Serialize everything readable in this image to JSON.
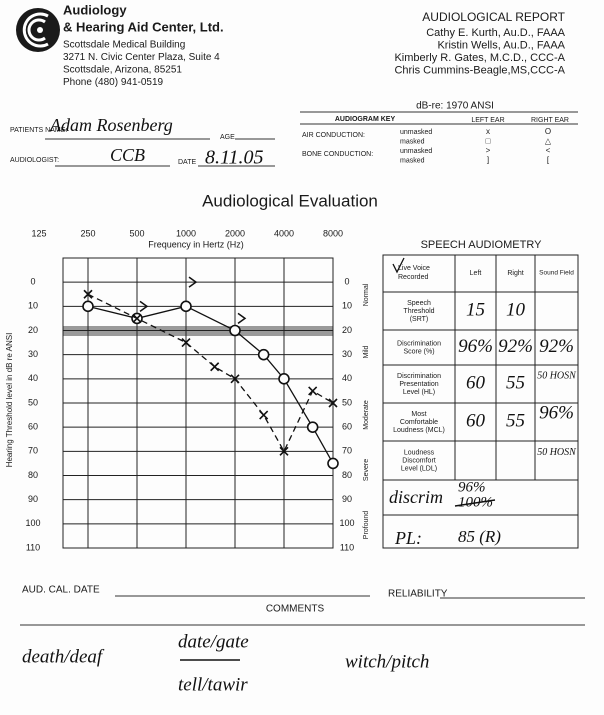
{
  "header": {
    "org_line1": "Audiology",
    "org_line2": "& Hearing Aid Center, Ltd.",
    "address": [
      "Scottsdale Medical Building",
      "3271 N. Civic Center Plaza, Suite 4",
      "Scottsdale, Arizona, 85251",
      "Phone (480) 941-0519"
    ],
    "report_title": "AUDIOLOGICAL REPORT",
    "staff": [
      "Cathy E. Kurth, Au.D., FAAA",
      "Kristin Wells, Au.D., FAAA",
      "Kimberly R. Gates, M.C.D., CCC-A",
      "Chris Cummins-Beagle,MS,CCC-A"
    ]
  },
  "patient": {
    "name_label": "PATIENTS NAME:",
    "name": "Adam Rosenberg",
    "age_label": "AGE",
    "audiologist_label": "AUDIOLOGIST:",
    "audiologist": "CCB",
    "date_label": "DATE",
    "date": "8.11.05"
  },
  "key": {
    "reference": "dB-re: 1970 ANSI",
    "title": "AUDIOGRAM KEY",
    "left_ear": "LEFT EAR",
    "right_ear": "RIGHT EAR",
    "rows": [
      {
        "label": "AIR CONDUCTION:",
        "mode": "unmasked",
        "left": "x",
        "right": "O"
      },
      {
        "mode": "masked",
        "left": "□",
        "right": "△"
      },
      {
        "label": "BONE CONDUCTION:",
        "mode": "unmasked",
        "left": ">",
        "right": "<"
      },
      {
        "mode": "masked",
        "left": "]",
        "right": "["
      }
    ]
  },
  "audiogram": {
    "title": "Audiological Evaluation",
    "x_label": "Frequency in Hertz (Hz)",
    "y_label": "Hearing Threshold level in dB re ANSI",
    "xlim": [
      125,
      8000
    ],
    "xticks": [
      125,
      250,
      500,
      1000,
      2000,
      4000,
      8000
    ],
    "ylim": [
      -10,
      110
    ],
    "yticks": [
      0,
      10,
      20,
      30,
      40,
      50,
      60,
      70,
      80,
      90,
      100,
      110
    ],
    "degrees": [
      "Normal",
      "Mild",
      "Moderate",
      "Severe",
      "Profound"
    ],
    "series": [
      {
        "name": "Right ear air conduction",
        "marker": "O",
        "frequencies": [
          250,
          500,
          1000,
          2000,
          3000,
          4000,
          6000,
          8000
        ],
        "values": [
          10,
          15,
          10,
          20,
          30,
          40,
          60,
          75
        ]
      },
      {
        "name": "Left ear air conduction",
        "marker": "x",
        "frequencies": [
          250,
          500,
          1000,
          1500,
          2000,
          3000,
          4000,
          6000,
          8000
        ],
        "values": [
          5,
          15,
          25,
          35,
          40,
          55,
          70,
          45,
          50
        ]
      },
      {
        "name": "Left ear bone conduction",
        "marker": ">",
        "frequencies": [
          500,
          1000,
          2000
        ],
        "values": [
          10,
          0,
          15
        ]
      }
    ]
  },
  "speech": {
    "title": "SPEECH AUDIOMETRY",
    "mode": [
      "Live Voice",
      "Recorded"
    ],
    "columns": [
      "Left",
      "Right",
      "Sound Field"
    ],
    "rows": [
      {
        "label": [
          "Speech",
          "Threshold",
          "(SRT)"
        ],
        "cells": [
          "15",
          "10",
          null
        ]
      },
      {
        "label": [
          "Discrimination",
          "Score (%)"
        ],
        "cells": [
          "96%",
          "92%",
          "92%"
        ]
      },
      {
        "label": [
          "Discrimination",
          "Presentation",
          "Level (HL)"
        ],
        "cells": [
          "60",
          "55",
          "50 HOSN"
        ]
      },
      {
        "label": [
          "Most",
          "Comfortable",
          "Loudness (MCL)"
        ],
        "cells": [
          "60",
          "55",
          "96%"
        ]
      },
      {
        "label": [
          "Loudness",
          "Discomfort",
          "Level (LDL)"
        ],
        "cells": [
          null,
          null,
          "50 HOSN"
        ]
      }
    ],
    "discrim_label": "discrim",
    "discrim_values": [
      "96%",
      "100%"
    ],
    "pl_label": "PL:",
    "pl_value": "85 (R)"
  },
  "footer": {
    "cal_date": "AUD. CAL. DATE",
    "reliability": "RELIABILITY",
    "comments": "COMMENTS",
    "notes": [
      "death/deaf",
      "date/gate",
      "tell/tawir",
      "witch/pitch"
    ]
  }
}
